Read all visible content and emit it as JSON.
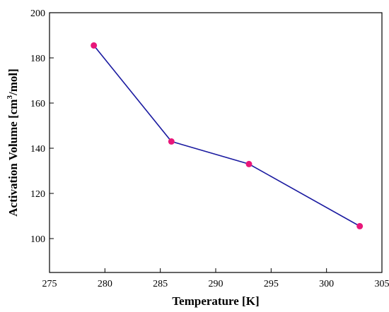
{
  "chart_data": {
    "type": "line",
    "xlabel": "Temperature [K]",
    "ylabel": {
      "prefix": "Activation Volume [cm",
      "sup": "3",
      "suffix": "/mol]"
    },
    "xlim": [
      275,
      305
    ],
    "ylim": [
      85,
      200
    ],
    "xticks": [
      275,
      280,
      285,
      290,
      295,
      300,
      305
    ],
    "yticks": [
      100,
      120,
      140,
      160,
      180,
      200
    ],
    "grid": false,
    "series": [
      {
        "x": [
          279,
          286,
          293,
          303
        ],
        "y": [
          185.5,
          143,
          133,
          105.5
        ],
        "line_color": "#1a1aa0",
        "marker_color": "#e8177a"
      }
    ]
  }
}
